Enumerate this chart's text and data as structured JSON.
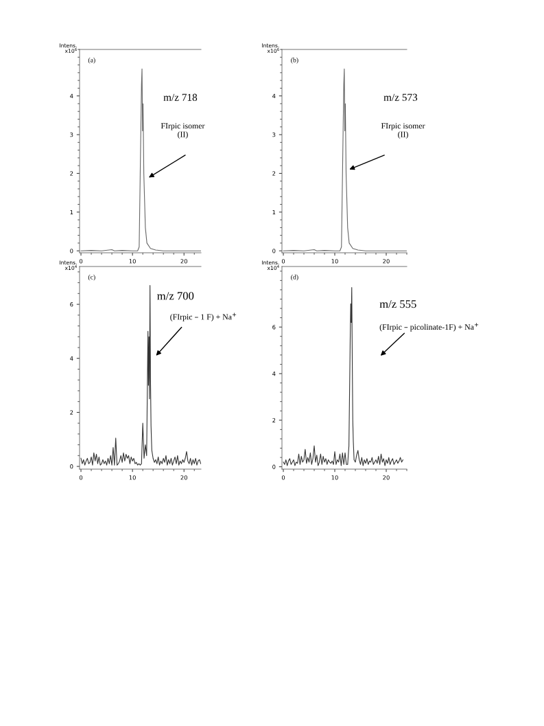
{
  "chart_data": [
    {
      "type": "line",
      "ylabel": "Intens.\nx10$^{6}$",
      "xlim": [
        -0.27,
        23.3
      ],
      "ylim": [
        -0.05,
        5.2
      ],
      "xticks": [
        0,
        10,
        20
      ],
      "yticks": [
        0,
        1,
        2,
        3,
        4
      ],
      "annotations": [
        "(a)",
        "m/z 718",
        "FIrpic isomer\n(II)"
      ],
      "series": [
        {
          "color": "#666666",
          "x": [
            0,
            2,
            4,
            6,
            6.5,
            8,
            10,
            11.0,
            11.3,
            11.6,
            11.75,
            11.85,
            11.95,
            12.05,
            12.2,
            12.5,
            12.8,
            13.5,
            14.5,
            16,
            20,
            23.3
          ],
          "values": [
            0,
            0.01,
            0,
            0.03,
            0,
            0.01,
            0,
            0,
            0.1,
            2.9,
            4.3,
            4.7,
            3.1,
            3.8,
            2.0,
            0.6,
            0.2,
            0.06,
            0.02,
            0,
            0,
            0
          ]
        }
      ]
    },
    {
      "type": "line",
      "ylabel": "Intens.\nx10$^{6}$",
      "xlim": [
        -0.27,
        24.0
      ],
      "ylim": [
        -0.05,
        5.2
      ],
      "xticks": [
        0,
        10,
        20
      ],
      "yticks": [
        0,
        1,
        2,
        3,
        4
      ],
      "annotations": [
        "(b)",
        "m/z 573",
        "FIrpic isomer\n(II)"
      ],
      "series": [
        {
          "color": "#666666",
          "x": [
            0,
            2,
            4,
            6,
            6.5,
            8,
            10,
            11.0,
            11.3,
            11.6,
            11.75,
            11.85,
            11.95,
            12.05,
            12.2,
            12.5,
            12.8,
            13.5,
            14.5,
            16,
            20,
            24.0
          ],
          "values": [
            0,
            0.01,
            0,
            0.03,
            0,
            0.01,
            0,
            0,
            0.1,
            2.9,
            4.3,
            4.7,
            3.1,
            3.8,
            2.0,
            0.6,
            0.2,
            0.06,
            0.02,
            0,
            0,
            0
          ]
        }
      ]
    },
    {
      "type": "line",
      "ylabel": "Intens.\nx10$^{4}$",
      "xlim": [
        -0.27,
        23.3
      ],
      "ylim": [
        -0.1,
        7.4
      ],
      "xticks": [
        0,
        10,
        20
      ],
      "yticks": [
        0,
        2,
        4,
        6
      ],
      "annotations": [
        "(c)",
        "m/z 700",
        "(FIrpic – 1 F) + Na$^{+}$"
      ],
      "series": [
        {
          "color": "#333333",
          "x": [
            0,
            0.25,
            0.5,
            0.75,
            1,
            1.25,
            1.5,
            1.75,
            2,
            2.25,
            2.5,
            2.75,
            3,
            3.25,
            3.5,
            3.75,
            4,
            4.25,
            4.5,
            4.75,
            5,
            5.25,
            5.5,
            5.75,
            6,
            6.25,
            6.5,
            6.75,
            7,
            7.25,
            7.5,
            7.75,
            8,
            8.25,
            8.5,
            8.75,
            9,
            9.25,
            9.5,
            9.75,
            10,
            10.25,
            10.5,
            10.75,
            11,
            11.25,
            11.5,
            11.75,
            12,
            12.25,
            12.5,
            12.75,
            13,
            13.1,
            13.2,
            13.3,
            13.4,
            13.5,
            13.6,
            13.75,
            14,
            14.25,
            14.5,
            14.75,
            15,
            15.25,
            15.5,
            15.75,
            16,
            16.25,
            16.5,
            16.75,
            17,
            17.25,
            17.5,
            17.75,
            18,
            18.25,
            18.5,
            18.75,
            19,
            19.25,
            19.5,
            19.75,
            20,
            20.25,
            20.5,
            20.75,
            21,
            21.25,
            21.5,
            21.75,
            22,
            22.25,
            22.5,
            22.75,
            23,
            23.25
          ],
          "values": [
            0.3,
            0.1,
            0.25,
            0.05,
            0.2,
            0.3,
            0.1,
            0.15,
            0.35,
            0.05,
            0.5,
            0.2,
            0.45,
            0.1,
            0.35,
            0.05,
            0.1,
            0.25,
            0.1,
            0.2,
            0.05,
            0.3,
            0.1,
            0.4,
            0.05,
            0.7,
            0.05,
            1.05,
            0.05,
            0.1,
            0.2,
            0.4,
            0.15,
            0.5,
            0.2,
            0.45,
            0.3,
            0.4,
            0.1,
            0.35,
            0.2,
            0.3,
            0.1,
            0.15,
            0.05,
            0.1,
            0.05,
            0.1,
            1.6,
            0.3,
            0.8,
            0.4,
            5.0,
            3.0,
            4.8,
            2.5,
            6.7,
            3.2,
            1.5,
            0.6,
            0.3,
            0.15,
            0.25,
            0.1,
            0.35,
            0.05,
            0.2,
            0.1,
            0.3,
            0.15,
            0.4,
            0.05,
            0.25,
            0.1,
            0.3,
            0.05,
            0.2,
            0.35,
            0.1,
            0.4,
            0.05,
            0.2,
            0.1,
            0.25,
            0.15,
            0.3,
            0.55,
            0.2,
            0.1,
            0.3,
            0.05,
            0.25,
            0.1,
            0.3,
            0.05,
            0.2,
            0.25,
            0.1
          ]
        }
      ]
    },
    {
      "type": "line",
      "ylabel": "Intens.\nx10$^{4}$",
      "xlim": [
        -0.27,
        24.0
      ],
      "ylim": [
        -0.1,
        8.6
      ],
      "xticks": [
        0,
        10,
        20
      ],
      "yticks": [
        0,
        2,
        4,
        6
      ],
      "annotations": [
        "(d)",
        "m/z 555",
        "(FIrpic – picolinate-1F) + Na$^{+}$"
      ],
      "series": [
        {
          "color": "#333333",
          "x": [
            0,
            0.25,
            0.5,
            0.75,
            1,
            1.25,
            1.5,
            1.75,
            2,
            2.25,
            2.5,
            2.75,
            3,
            3.25,
            3.5,
            3.75,
            4,
            4.25,
            4.5,
            4.75,
            5,
            5.25,
            5.5,
            5.75,
            6,
            6.25,
            6.5,
            6.75,
            7,
            7.25,
            7.5,
            7.75,
            8,
            8.25,
            8.5,
            8.75,
            9,
            9.25,
            9.5,
            9.75,
            10,
            10.25,
            10.5,
            10.75,
            11,
            11.25,
            11.5,
            11.75,
            12,
            12.25,
            12.5,
            12.75,
            13,
            13.1,
            13.2,
            13.3,
            13.4,
            13.5,
            13.6,
            13.75,
            14,
            14.25,
            14.5,
            14.75,
            15,
            15.25,
            15.5,
            15.75,
            16,
            16.25,
            16.5,
            16.75,
            17,
            17.25,
            17.5,
            17.75,
            18,
            18.25,
            18.5,
            18.75,
            19,
            19.25,
            19.5,
            19.75,
            20,
            20.25,
            20.5,
            20.75,
            21,
            21.25,
            21.5,
            21.75,
            22,
            22.25,
            22.5,
            22.75,
            23,
            23.25
          ],
          "values": [
            0.2,
            0.1,
            0.3,
            0.05,
            0.25,
            0.35,
            0.1,
            0.2,
            0.3,
            0.05,
            0.2,
            0.15,
            0.55,
            0.1,
            0.45,
            0.2,
            0.3,
            0.75,
            0.15,
            0.4,
            0.2,
            0.6,
            0.1,
            0.35,
            0.9,
            0.2,
            0.5,
            0.05,
            0.2,
            0.55,
            0.1,
            0.45,
            0.2,
            0.35,
            0.1,
            0.3,
            0.2,
            0.15,
            0.25,
            0.1,
            0.65,
            0.1,
            0.3,
            0.2,
            0.55,
            0.05,
            0.6,
            0.1,
            0.6,
            0.1,
            0.1,
            0.9,
            5.5,
            7.0,
            6.2,
            7.7,
            4.6,
            2.0,
            1.1,
            0.3,
            0.2,
            0.5,
            0.7,
            0.3,
            0.1,
            0.4,
            0.05,
            0.3,
            0.15,
            0.35,
            0.1,
            0.25,
            0.2,
            0.4,
            0.1,
            0.2,
            0.3,
            0.15,
            0.45,
            0.1,
            0.55,
            0.2,
            0.35,
            0.05,
            0.3,
            0.15,
            0.4,
            0.1,
            0.25,
            0.35,
            0.1,
            0.2,
            0.3,
            0.15,
            0.25,
            0.4,
            0.2,
            0.3
          ]
        }
      ]
    }
  ]
}
